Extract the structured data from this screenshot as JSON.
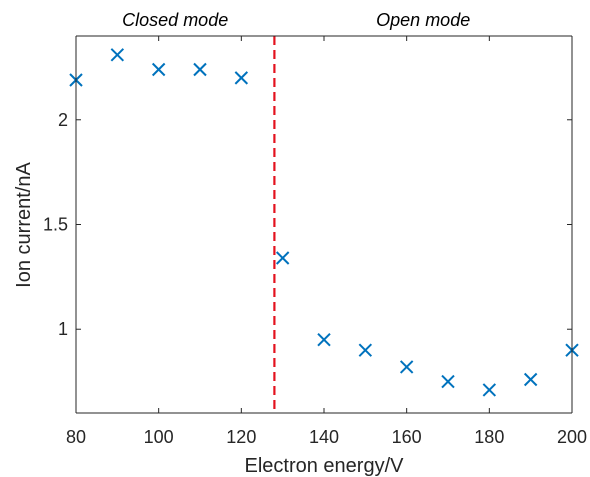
{
  "chart_data": {
    "type": "scatter",
    "xlabel": "Electron energy/V",
    "ylabel": "Ion current/nA",
    "xlim": [
      80,
      200
    ],
    "ylim": [
      0.6,
      2.4
    ],
    "xticks": [
      80,
      100,
      120,
      140,
      160,
      180,
      200
    ],
    "xtick_labels": [
      "80",
      "100",
      "120",
      "140",
      "160",
      "180",
      "200"
    ],
    "yticks": [
      1,
      1.5,
      2
    ],
    "ytick_labels": [
      "1",
      "1.5",
      "2"
    ],
    "grid": false,
    "marker": "x",
    "series": [
      {
        "x": [
          80,
          90,
          100,
          110,
          120,
          130,
          140,
          150,
          160,
          170,
          180,
          190,
          200
        ],
        "y": [
          2.19,
          2.31,
          2.24,
          2.24,
          2.2,
          1.34,
          0.95,
          0.9,
          0.82,
          0.75,
          0.71,
          0.76,
          0.9
        ],
        "color": "#0072BD"
      }
    ],
    "reference_line": {
      "x": 128,
      "orientation": "vertical",
      "style": "dashed",
      "color": "#E3121E"
    },
    "annotations": [
      {
        "text": "Closed mode",
        "x": 104
      },
      {
        "text": "Open mode",
        "x": 164
      }
    ]
  }
}
